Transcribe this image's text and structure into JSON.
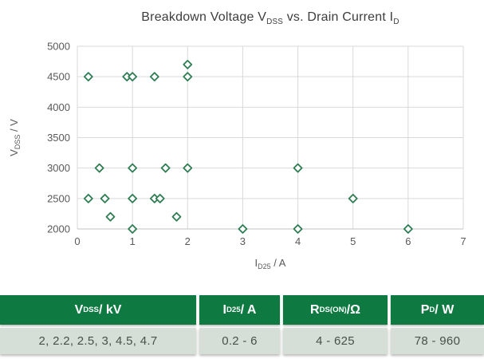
{
  "colors": {
    "marker_stroke": "#2e7d52",
    "marker_fill": "#fdfefd",
    "gridline": "#d9d9d9",
    "axis_line": "#c3c3c3",
    "tick_label": "#595959",
    "title_text": "#3d3d3d",
    "table_header_bg": "#0e7a41",
    "table_header_text": "#ffffff",
    "table_row_bg": "#d6ded8",
    "table_row_text": "#47504a"
  },
  "chart": {
    "title_segments": [
      [
        "t",
        "Breakdown Voltage V"
      ],
      [
        "s",
        "DSS"
      ],
      [
        "t",
        " vs. Drain Current I"
      ],
      [
        "s",
        "D"
      ]
    ],
    "xlabel_segments": [
      [
        "t",
        "I"
      ],
      [
        "s",
        "D25"
      ],
      [
        "t",
        " / A"
      ]
    ],
    "ylabel_segments": [
      [
        "t",
        "V"
      ],
      [
        "s",
        "DSS"
      ],
      [
        "t",
        " / V"
      ]
    ],
    "x_ticks": [
      0,
      1,
      2,
      3,
      4,
      5,
      6,
      7
    ],
    "y_ticks": [
      2000,
      2500,
      3000,
      3500,
      4000,
      4500,
      5000
    ]
  },
  "chart_data": {
    "type": "scatter",
    "title": "Breakdown Voltage V_DSS vs. Drain Current I_D",
    "xlabel": "I_D25 / A",
    "ylabel": "V_DSS / V",
    "xlim": [
      0,
      7
    ],
    "ylim": [
      2000,
      5000
    ],
    "grid": true,
    "legend": false,
    "marker": "open-diamond",
    "points": [
      [
        0.2,
        4500
      ],
      [
        0.9,
        4500
      ],
      [
        1.0,
        4500
      ],
      [
        1.4,
        4500
      ],
      [
        2.0,
        4500
      ],
      [
        2.0,
        4700
      ],
      [
        0.4,
        3000
      ],
      [
        1.0,
        3000
      ],
      [
        1.6,
        3000
      ],
      [
        2.0,
        3000
      ],
      [
        4.0,
        3000
      ],
      [
        0.2,
        2500
      ],
      [
        0.5,
        2500
      ],
      [
        1.0,
        2500
      ],
      [
        1.4,
        2500
      ],
      [
        1.5,
        2500
      ],
      [
        5.0,
        2500
      ],
      [
        0.6,
        2200
      ],
      [
        1.8,
        2200
      ],
      [
        1.0,
        2000
      ],
      [
        3.0,
        2000
      ],
      [
        4.0,
        2000
      ],
      [
        6.0,
        2000
      ]
    ]
  },
  "table": {
    "headers": [
      {
        "segments": [
          [
            "t",
            "V"
          ],
          [
            "s",
            "DSS"
          ],
          [
            "t",
            " / kV"
          ]
        ]
      },
      {
        "segments": [
          [
            "t",
            "I"
          ],
          [
            "s",
            "D25"
          ],
          [
            "t",
            " / A"
          ]
        ]
      },
      {
        "segments": [
          [
            "t",
            "R"
          ],
          [
            "s",
            "DS(ON)"
          ],
          [
            "t",
            " /Ω"
          ]
        ]
      },
      {
        "segments": [
          [
            "t",
            "P"
          ],
          [
            "s",
            "D"
          ],
          [
            "t",
            " / W"
          ]
        ]
      }
    ],
    "row": [
      "2, 2.2, 2.5, 3, 4.5, 4.7",
      "0.2 - 6",
      "4 - 625",
      "78 - 960"
    ]
  }
}
